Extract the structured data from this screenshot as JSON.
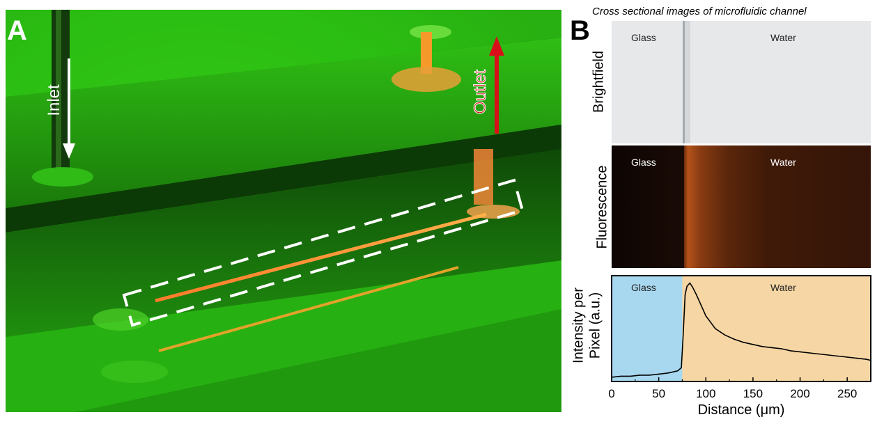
{
  "panel_a": {
    "letter": "A",
    "inlet_label": "Inlet",
    "outlet_label": "Outlet"
  },
  "panel_b": {
    "letter": "B",
    "caption": "Cross sectional images of microfluidic channel",
    "brightfield": {
      "side_label": "Brightfield",
      "glass_label": "Glass",
      "water_label": "Water"
    },
    "fluorescence": {
      "side_label": "Fluorescence",
      "glass_label": "Glass",
      "water_label": "Water"
    }
  },
  "chart_data": {
    "type": "line",
    "region_labels": [
      "Glass",
      "Water"
    ],
    "glass_water_boundary": 75,
    "region_colors": {
      "glass": "#a8d8ef",
      "water": "#f6d6a4"
    },
    "ylabel_line1": "Intensity per",
    "ylabel_line2": "Pixel (a.u.)",
    "xlabel": "Distance (μm)",
    "xlim": [
      0,
      275
    ],
    "ylim": [
      0,
      1
    ],
    "xticks": [
      "0",
      "50",
      "100",
      "150",
      "200",
      "250"
    ],
    "series": [
      {
        "x": [
          0,
          10,
          20,
          30,
          40,
          50,
          60,
          70,
          74,
          76,
          78,
          80,
          83,
          86,
          90,
          95,
          100,
          110,
          120,
          130,
          140,
          150,
          160,
          170,
          180,
          190,
          200,
          210,
          220,
          230,
          240,
          250,
          260,
          270,
          275
        ],
        "y": [
          0.04,
          0.05,
          0.05,
          0.06,
          0.06,
          0.07,
          0.08,
          0.1,
          0.13,
          0.45,
          0.82,
          0.9,
          0.93,
          0.89,
          0.82,
          0.72,
          0.62,
          0.5,
          0.44,
          0.4,
          0.37,
          0.35,
          0.33,
          0.32,
          0.31,
          0.29,
          0.28,
          0.27,
          0.26,
          0.25,
          0.24,
          0.23,
          0.22,
          0.21,
          0.2
        ]
      }
    ]
  }
}
